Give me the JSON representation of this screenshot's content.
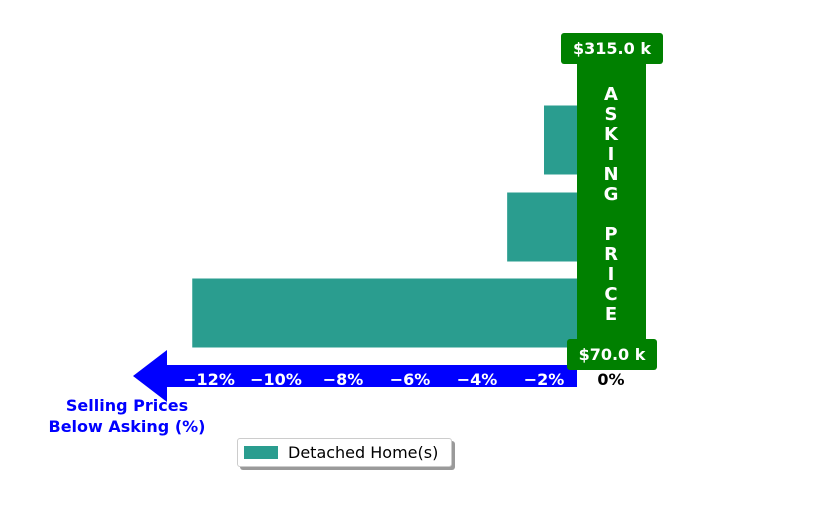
{
  "colors": {
    "bar": "#2a9d8f",
    "asking_band": "#008000",
    "axis_arrow": "#0000ff",
    "axis_title": "#0000ff",
    "tick_text": "#ffffff",
    "zero_tick_text": "#000000"
  },
  "chart_data": {
    "type": "bar",
    "orientation": "horizontal",
    "series": [
      {
        "name": "Detached Home(s)",
        "values": [
          -12.5,
          -3.1,
          -2.0
        ]
      }
    ],
    "xlim": [
      -13,
      0
    ],
    "x_ticks": [
      -12,
      -10,
      -8,
      -6,
      -4,
      -2,
      0
    ],
    "x_tick_labels": [
      "−12%",
      "−10%",
      "−8%",
      "−6%",
      "−4%",
      "−2%",
      "0%"
    ],
    "xlabel": "Selling Prices\nBelow Asking (%)",
    "asking_price_label": "ASKING PRICE",
    "asking_price_top": "$315.0 k",
    "asking_price_bottom": "$70.0 k",
    "legend_position": "bottom-center",
    "grid": false
  },
  "legend": {
    "label": "Detached Home(s)"
  }
}
